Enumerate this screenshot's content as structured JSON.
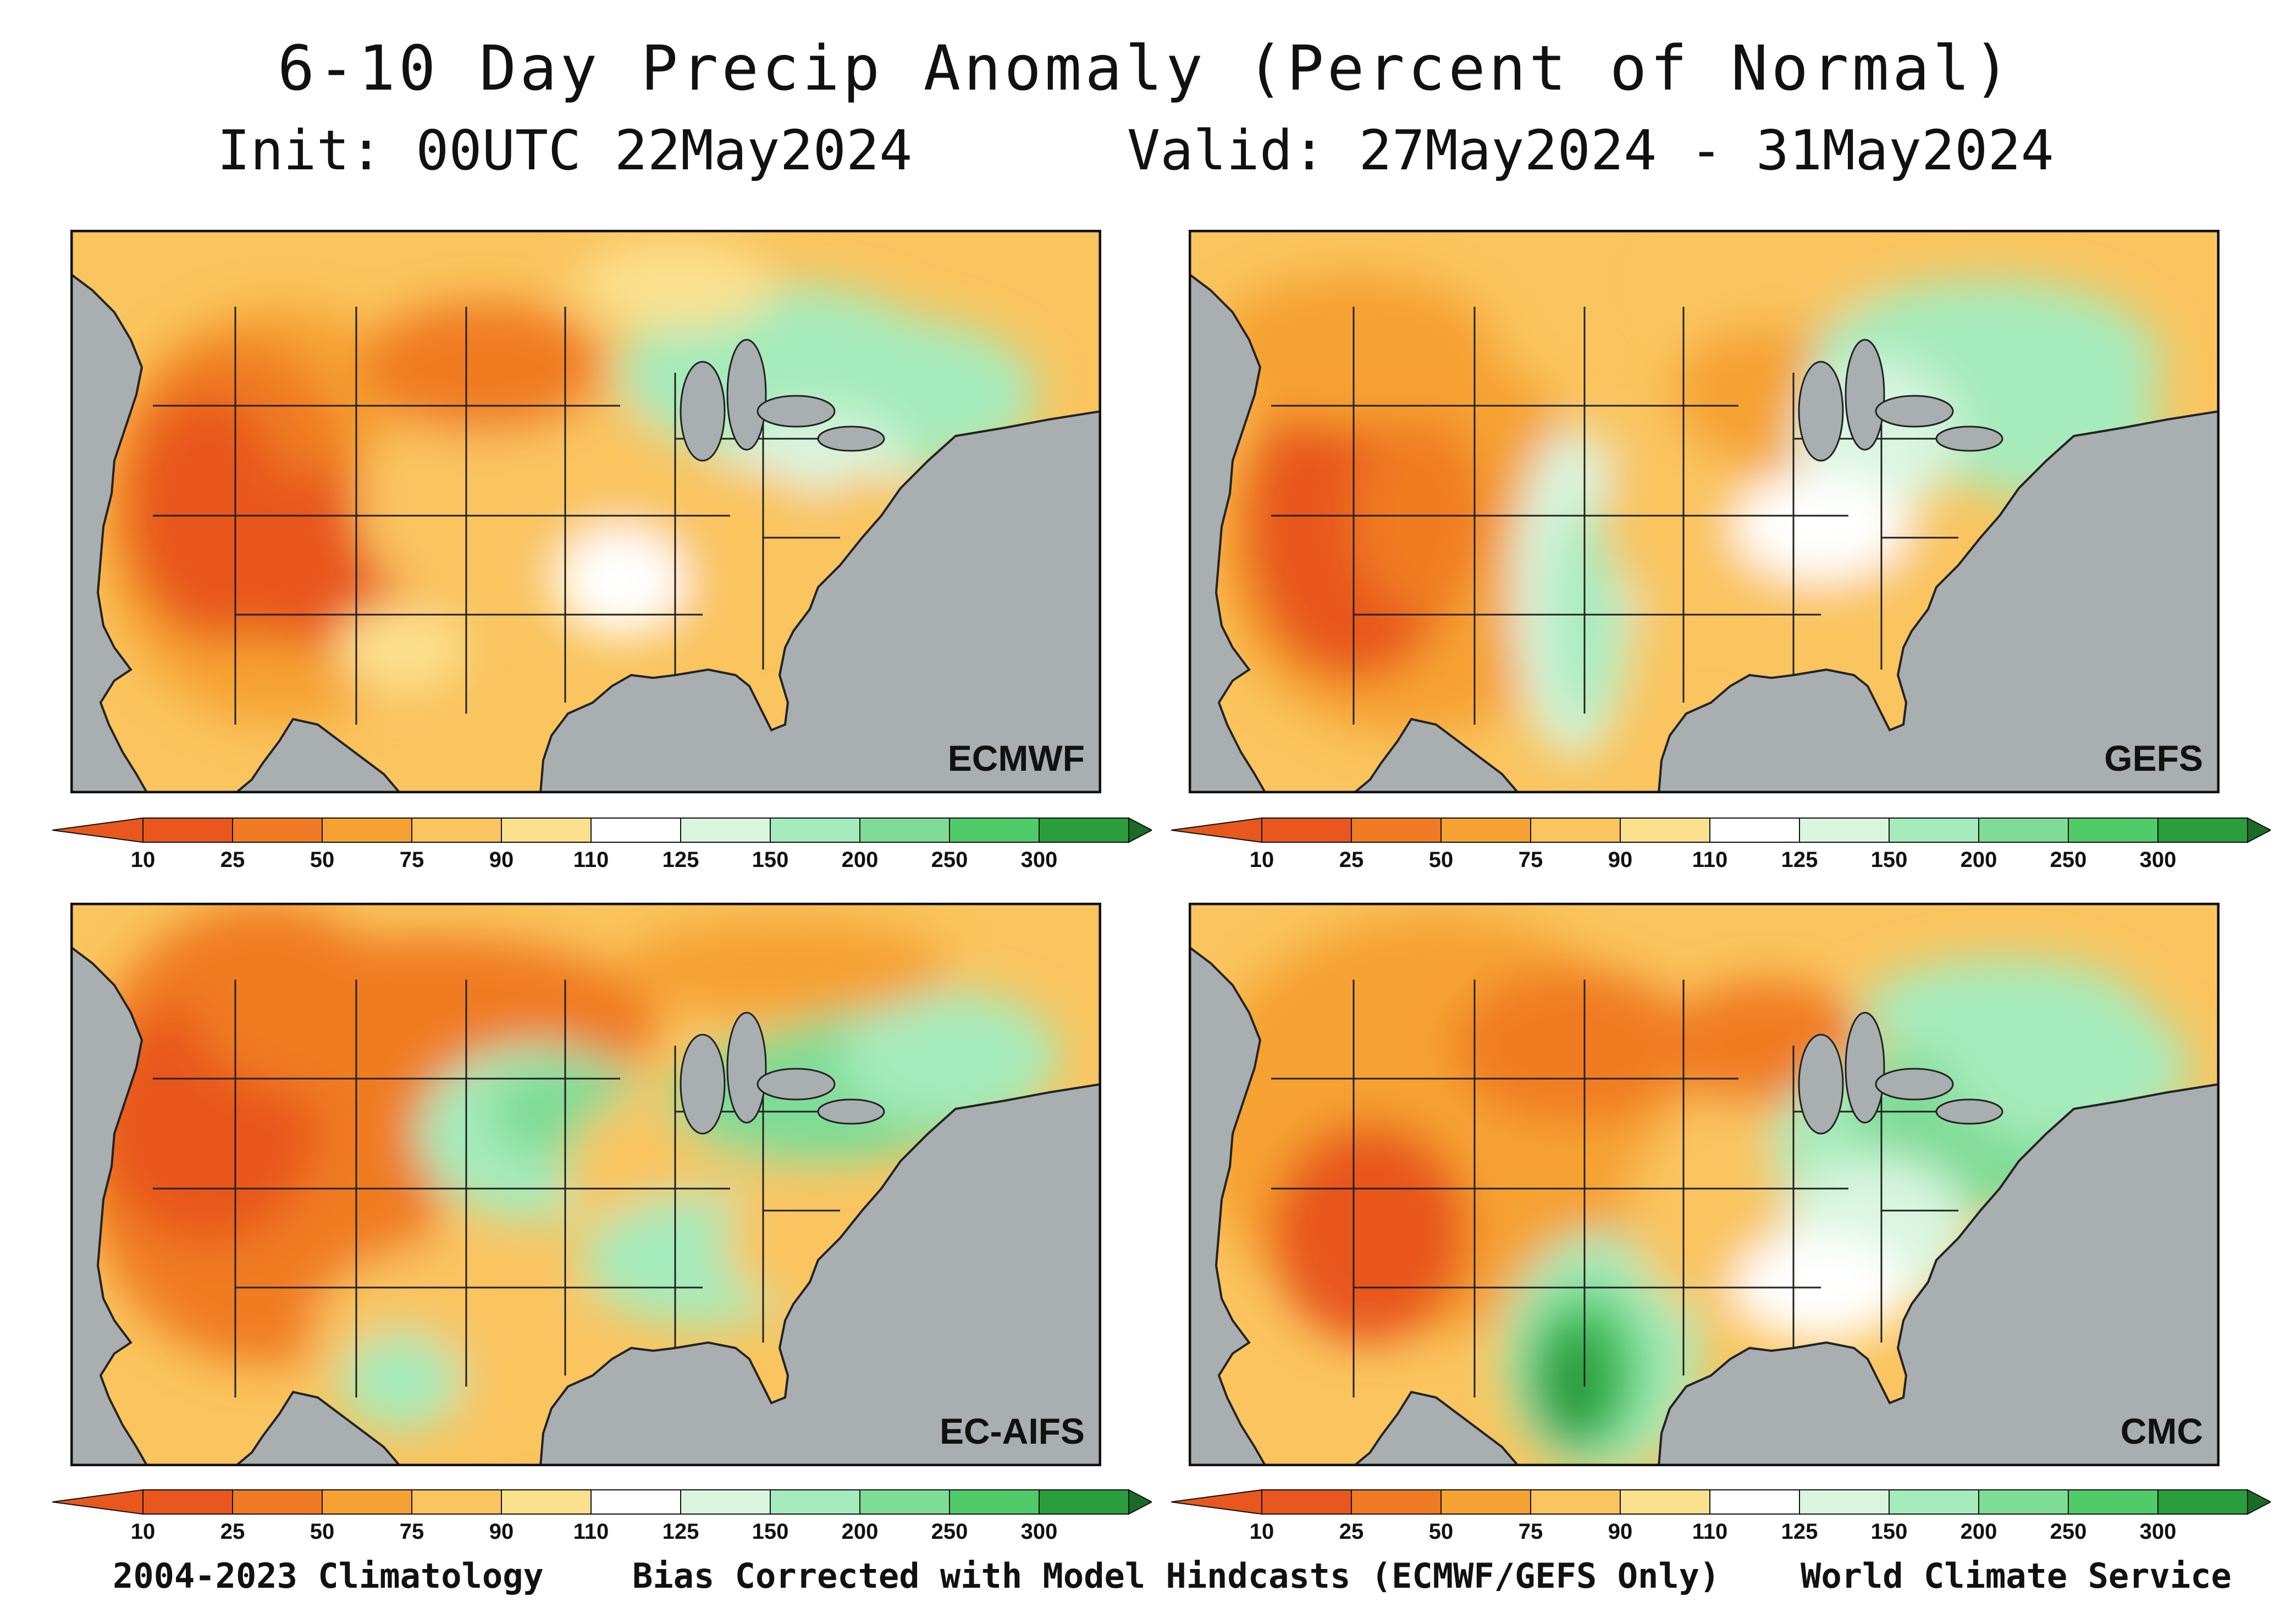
{
  "title": "6-10 Day Precip Anomaly (Percent of Normal)",
  "init": "Init: 00UTC 22May2024",
  "valid": "Valid: 27May2024 - 31May2024",
  "colors": {
    "water": "#a9aeb0",
    "c10": "#e8571d",
    "c25": "#f07b24",
    "c50": "#f6a233",
    "c75": "#fac45e",
    "c90": "#fbe08e",
    "c110": "#ffffff",
    "c125": "#d9f5e0",
    "c150": "#a6ebbb",
    "c200": "#7fdc96",
    "c250": "#4fcb6a",
    "c300": "#2a9d3c",
    "cmax": "#1a6b28"
  },
  "panels": [
    {
      "label": "ECMWF"
    },
    {
      "label": "GEFS"
    },
    {
      "label": "EC-AIFS"
    },
    {
      "label": "CMC"
    }
  ],
  "colorbar": {
    "ticks": [
      "10",
      "25",
      "50",
      "75",
      "90",
      "110",
      "125",
      "150",
      "200",
      "250",
      "300"
    ]
  },
  "footer": {
    "left": "2004-2023 Climatology",
    "center": "Bias Corrected with Model Hindcasts (ECMWF/GEFS Only)",
    "right": "World Climate Service"
  }
}
